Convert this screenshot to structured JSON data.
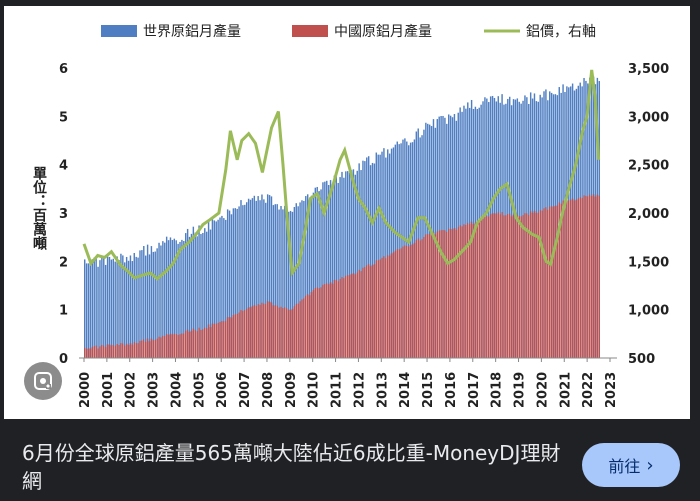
{
  "preview": {
    "caption": "6月份全球原鋁產量565萬噸大陸佔近6成比重-MoneyDJ理財網",
    "go_button": "前往",
    "lens_icon": "lens-icon"
  },
  "chart_data": {
    "type": "bar+line",
    "legend": [
      "世界原鋁月產量",
      "中國原鋁月產量",
      "鋁價，右軸"
    ],
    "ylabel": "單位：百萬噸",
    "y_left_ticks": [
      "0",
      "1",
      "2",
      "3",
      "4",
      "5",
      "6"
    ],
    "y_left_range": [
      0,
      6
    ],
    "y_right_ticks": [
      "500",
      "1,000",
      "1,500",
      "2,000",
      "2,500",
      "3,000",
      "3,500"
    ],
    "y_right_range": [
      500,
      3500
    ],
    "x_ticks": [
      "2000",
      "2001",
      "2002",
      "2003",
      "2004",
      "2005",
      "2006",
      "2007",
      "2008",
      "2009",
      "2010",
      "2011",
      "2012",
      "2013",
      "2014",
      "2015",
      "2016",
      "2017",
      "2018",
      "2019",
      "2020",
      "2021",
      "2022",
      "2023"
    ],
    "colors": {
      "world": "#4f7ec2",
      "china": "#c0504d",
      "price": "#9bbb59"
    },
    "world_yearly": [
      {
        "year": 2000,
        "value": 2.0
      },
      {
        "year": 2001,
        "value": 2.0
      },
      {
        "year": 2002,
        "value": 2.1
      },
      {
        "year": 2003,
        "value": 2.3
      },
      {
        "year": 2004,
        "value": 2.45
      },
      {
        "year": 2005,
        "value": 2.65
      },
      {
        "year": 2006,
        "value": 2.9
      },
      {
        "year": 2007,
        "value": 3.2
      },
      {
        "year": 2008,
        "value": 3.3
      },
      {
        "year": 2009,
        "value": 3.05
      },
      {
        "year": 2010,
        "value": 3.4
      },
      {
        "year": 2011,
        "value": 3.7
      },
      {
        "year": 2012,
        "value": 3.95
      },
      {
        "year": 2013,
        "value": 4.2
      },
      {
        "year": 2014,
        "value": 4.45
      },
      {
        "year": 2015,
        "value": 4.8
      },
      {
        "year": 2016,
        "value": 4.95
      },
      {
        "year": 2017,
        "value": 5.25
      },
      {
        "year": 2018,
        "value": 5.35
      },
      {
        "year": 2019,
        "value": 5.35
      },
      {
        "year": 2020,
        "value": 5.4
      },
      {
        "year": 2021,
        "value": 5.6
      },
      {
        "year": 2022,
        "value": 5.7
      }
    ],
    "china_yearly": [
      {
        "year": 2000,
        "value": 0.2
      },
      {
        "year": 2001,
        "value": 0.25
      },
      {
        "year": 2002,
        "value": 0.3
      },
      {
        "year": 2003,
        "value": 0.4
      },
      {
        "year": 2004,
        "value": 0.5
      },
      {
        "year": 2005,
        "value": 0.6
      },
      {
        "year": 2006,
        "value": 0.75
      },
      {
        "year": 2007,
        "value": 1.0
      },
      {
        "year": 2008,
        "value": 1.15
      },
      {
        "year": 2009,
        "value": 1.0
      },
      {
        "year": 2010,
        "value": 1.4
      },
      {
        "year": 2011,
        "value": 1.6
      },
      {
        "year": 2012,
        "value": 1.8
      },
      {
        "year": 2013,
        "value": 2.05
      },
      {
        "year": 2014,
        "value": 2.3
      },
      {
        "year": 2015,
        "value": 2.55
      },
      {
        "year": 2016,
        "value": 2.65
      },
      {
        "year": 2017,
        "value": 2.8
      },
      {
        "year": 2018,
        "value": 3.0
      },
      {
        "year": 2019,
        "value": 2.95
      },
      {
        "year": 2020,
        "value": 3.05
      },
      {
        "year": 2021,
        "value": 3.25
      },
      {
        "year": 2022,
        "value": 3.35
      }
    ],
    "price": [
      {
        "t": 2000.0,
        "v": 1680
      },
      {
        "t": 2000.3,
        "v": 1480
      },
      {
        "t": 2000.6,
        "v": 1560
      },
      {
        "t": 2000.9,
        "v": 1540
      },
      {
        "t": 2001.2,
        "v": 1600
      },
      {
        "t": 2001.6,
        "v": 1460
      },
      {
        "t": 2001.9,
        "v": 1400
      },
      {
        "t": 2002.2,
        "v": 1330
      },
      {
        "t": 2002.6,
        "v": 1360
      },
      {
        "t": 2002.9,
        "v": 1380
      },
      {
        "t": 2003.2,
        "v": 1320
      },
      {
        "t": 2003.6,
        "v": 1400
      },
      {
        "t": 2003.9,
        "v": 1480
      },
      {
        "t": 2004.2,
        "v": 1620
      },
      {
        "t": 2004.6,
        "v": 1700
      },
      {
        "t": 2004.9,
        "v": 1780
      },
      {
        "t": 2005.2,
        "v": 1880
      },
      {
        "t": 2005.5,
        "v": 1930
      },
      {
        "t": 2005.9,
        "v": 2000
      },
      {
        "t": 2006.2,
        "v": 2450
      },
      {
        "t": 2006.4,
        "v": 2850
      },
      {
        "t": 2006.7,
        "v": 2550
      },
      {
        "t": 2006.9,
        "v": 2750
      },
      {
        "t": 2007.2,
        "v": 2820
      },
      {
        "t": 2007.5,
        "v": 2720
      },
      {
        "t": 2007.8,
        "v": 2420
      },
      {
        "t": 2008.2,
        "v": 2880
      },
      {
        "t": 2008.5,
        "v": 3050
      },
      {
        "t": 2008.7,
        "v": 2500
      },
      {
        "t": 2008.9,
        "v": 1900
      },
      {
        "t": 2009.1,
        "v": 1380
      },
      {
        "t": 2009.4,
        "v": 1480
      },
      {
        "t": 2009.7,
        "v": 1850
      },
      {
        "t": 2009.9,
        "v": 2150
      },
      {
        "t": 2010.2,
        "v": 2200
      },
      {
        "t": 2010.5,
        "v": 2000
      },
      {
        "t": 2010.9,
        "v": 2300
      },
      {
        "t": 2011.2,
        "v": 2550
      },
      {
        "t": 2011.4,
        "v": 2650
      },
      {
        "t": 2011.8,
        "v": 2300
      },
      {
        "t": 2012.0,
        "v": 2150
      },
      {
        "t": 2012.3,
        "v": 2050
      },
      {
        "t": 2012.6,
        "v": 1900
      },
      {
        "t": 2012.9,
        "v": 2050
      },
      {
        "t": 2013.2,
        "v": 1900
      },
      {
        "t": 2013.6,
        "v": 1800
      },
      {
        "t": 2013.9,
        "v": 1750
      },
      {
        "t": 2014.2,
        "v": 1700
      },
      {
        "t": 2014.6,
        "v": 1950
      },
      {
        "t": 2014.9,
        "v": 1950
      },
      {
        "t": 2015.2,
        "v": 1800
      },
      {
        "t": 2015.6,
        "v": 1600
      },
      {
        "t": 2015.9,
        "v": 1480
      },
      {
        "t": 2016.2,
        "v": 1520
      },
      {
        "t": 2016.6,
        "v": 1620
      },
      {
        "t": 2016.9,
        "v": 1700
      },
      {
        "t": 2017.2,
        "v": 1900
      },
      {
        "t": 2017.6,
        "v": 2000
      },
      {
        "t": 2017.9,
        "v": 2150
      },
      {
        "t": 2018.2,
        "v": 2250
      },
      {
        "t": 2018.5,
        "v": 2300
      },
      {
        "t": 2018.9,
        "v": 1950
      },
      {
        "t": 2019.2,
        "v": 1850
      },
      {
        "t": 2019.6,
        "v": 1780
      },
      {
        "t": 2019.9,
        "v": 1750
      },
      {
        "t": 2020.2,
        "v": 1500
      },
      {
        "t": 2020.4,
        "v": 1470
      },
      {
        "t": 2020.7,
        "v": 1750
      },
      {
        "t": 2020.9,
        "v": 1980
      },
      {
        "t": 2021.2,
        "v": 2250
      },
      {
        "t": 2021.5,
        "v": 2500
      },
      {
        "t": 2021.8,
        "v": 2850
      },
      {
        "t": 2022.0,
        "v": 3000
      },
      {
        "t": 2022.2,
        "v": 3480
      },
      {
        "t": 2022.35,
        "v": 3200
      },
      {
        "t": 2022.5,
        "v": 2550
      }
    ]
  }
}
